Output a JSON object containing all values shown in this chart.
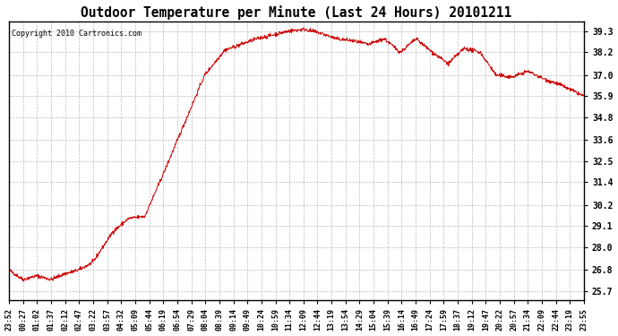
{
  "title": "Outdoor Temperature per Minute (Last 24 Hours) 20101211",
  "copyright": "Copyright 2010 Cartronics.com",
  "line_color": "#cc0000",
  "bg_color": "#ffffff",
  "plot_bg_color": "#ffffff",
  "grid_color": "#bbbbbb",
  "yticks": [
    25.7,
    26.8,
    28.0,
    29.1,
    30.2,
    31.4,
    32.5,
    33.6,
    34.8,
    35.9,
    37.0,
    38.2,
    39.3
  ],
  "ylim": [
    25.2,
    39.8
  ],
  "xtick_labels": [
    "23:52",
    "00:27",
    "01:02",
    "01:37",
    "02:12",
    "02:47",
    "03:22",
    "03:57",
    "04:32",
    "05:09",
    "05:44",
    "06:19",
    "06:54",
    "07:29",
    "08:04",
    "08:39",
    "09:14",
    "09:49",
    "10:24",
    "10:59",
    "11:34",
    "12:09",
    "12:44",
    "13:19",
    "13:54",
    "14:29",
    "15:04",
    "15:39",
    "16:14",
    "16:49",
    "17:24",
    "17:59",
    "18:37",
    "19:12",
    "19:47",
    "20:22",
    "20:57",
    "21:34",
    "22:09",
    "22:44",
    "23:19",
    "23:55"
  ],
  "n_points": 1440,
  "key_times": [
    0,
    35,
    70,
    105,
    140,
    175,
    210,
    260,
    300,
    340,
    390,
    440,
    490,
    540,
    580,
    620,
    660,
    700,
    740,
    780,
    820,
    860,
    900,
    940,
    980,
    1020,
    1060,
    1100,
    1140,
    1180,
    1220,
    1260,
    1300,
    1340,
    1380,
    1410,
    1430,
    1440
  ],
  "key_temps": [
    26.8,
    26.3,
    26.5,
    26.3,
    26.6,
    26.8,
    27.2,
    28.8,
    29.5,
    29.6,
    32.0,
    34.5,
    37.0,
    38.3,
    38.6,
    38.9,
    39.1,
    39.3,
    39.4,
    39.2,
    38.9,
    38.8,
    38.6,
    38.9,
    38.2,
    38.9,
    38.2,
    37.6,
    38.4,
    38.2,
    37.0,
    36.9,
    37.2,
    36.8,
    36.5,
    36.2,
    36.0,
    35.9
  ]
}
